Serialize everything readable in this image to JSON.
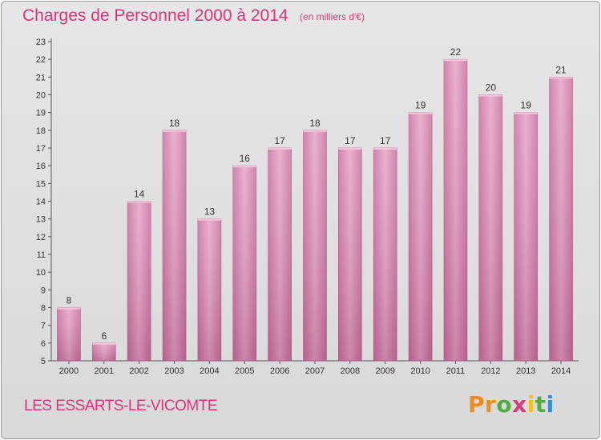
{
  "chart_data": {
    "type": "bar",
    "title": "Charges de Personnel 2000 à 2014",
    "subtitle": "(en milliers d'€)",
    "categories": [
      "2000",
      "2001",
      "2002",
      "2003",
      "2004",
      "2005",
      "2006",
      "2007",
      "2008",
      "2009",
      "2010",
      "2011",
      "2012",
      "2013",
      "2014"
    ],
    "values": [
      8,
      6,
      14,
      18,
      13,
      16,
      17,
      18,
      17,
      17,
      19,
      22,
      20,
      19,
      21
    ],
    "ylim": [
      5,
      23
    ],
    "yticks": [
      5,
      6,
      7,
      8,
      9,
      10,
      11,
      12,
      13,
      14,
      15,
      16,
      17,
      18,
      19,
      20,
      21,
      22,
      23
    ],
    "grid": false,
    "bar_color": "#d67aa8"
  },
  "footer": {
    "town": "LES ESSARTS-LE-VICOMTE",
    "logo": [
      "Pr",
      "o",
      "x",
      "i",
      "t",
      "i"
    ]
  }
}
